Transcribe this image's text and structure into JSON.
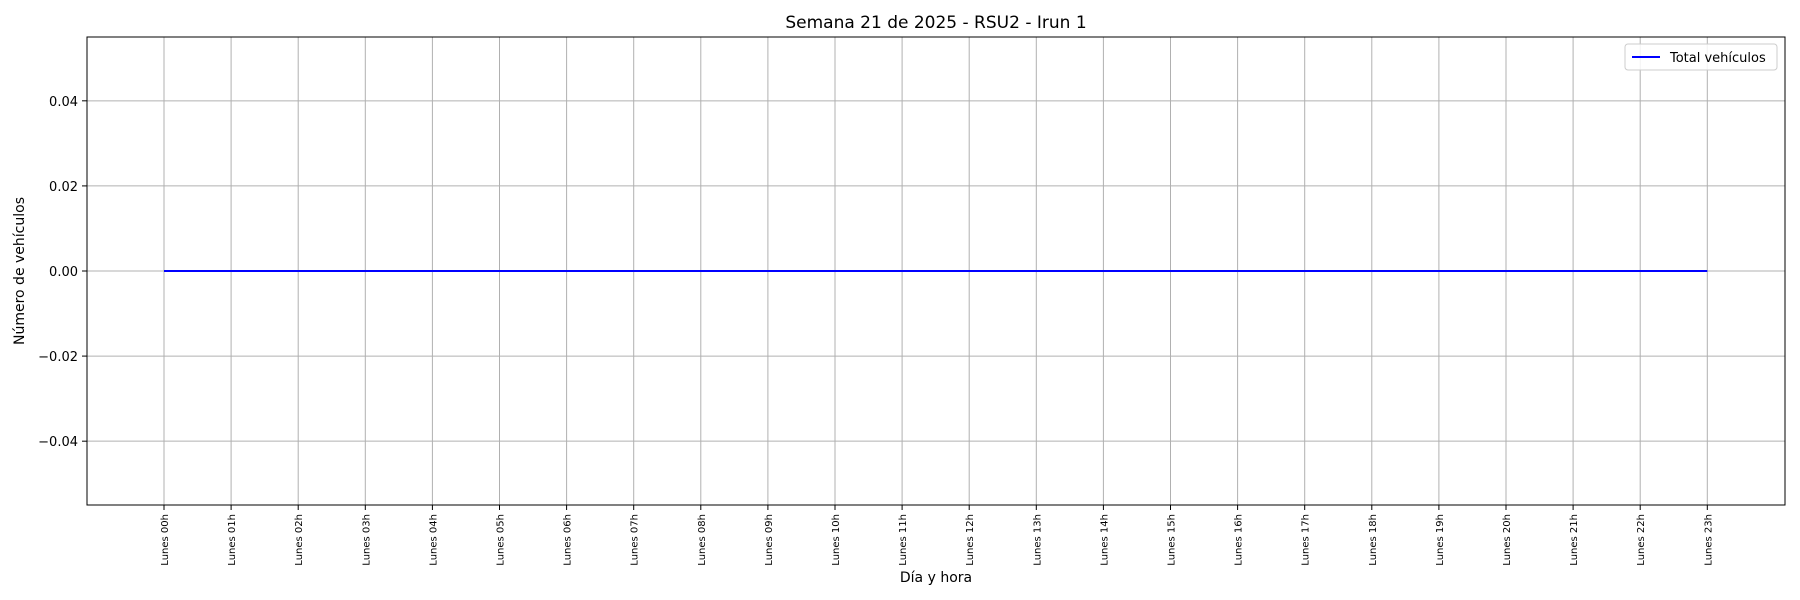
{
  "chart_data": {
    "type": "line",
    "title": "Semana 21 de 2025 - RSU2 - Irun 1",
    "xlabel": "Día y hora",
    "ylabel": "Número de vehículos",
    "categories": [
      "Lunes 00h",
      "Lunes 01h",
      "Lunes 02h",
      "Lunes 03h",
      "Lunes 04h",
      "Lunes 05h",
      "Lunes 06h",
      "Lunes 07h",
      "Lunes 08h",
      "Lunes 09h",
      "Lunes 10h",
      "Lunes 11h",
      "Lunes 12h",
      "Lunes 13h",
      "Lunes 14h",
      "Lunes 15h",
      "Lunes 16h",
      "Lunes 17h",
      "Lunes 18h",
      "Lunes 19h",
      "Lunes 20h",
      "Lunes 21h",
      "Lunes 22h",
      "Lunes 23h"
    ],
    "series": [
      {
        "name": "Total vehículos",
        "color": "#0000ff",
        "values": [
          0,
          0,
          0,
          0,
          0,
          0,
          0,
          0,
          0,
          0,
          0,
          0,
          0,
          0,
          0,
          0,
          0,
          0,
          0,
          0,
          0,
          0,
          0,
          0
        ]
      }
    ],
    "ylim": [
      -0.055,
      0.055
    ],
    "yticks": [
      -0.04,
      -0.02,
      0.0,
      0.02,
      0.04
    ],
    "ytick_labels": [
      "−0.04",
      "−0.02",
      "0.00",
      "0.02",
      "0.04"
    ],
    "grid": true,
    "legend_position": "top-right"
  }
}
